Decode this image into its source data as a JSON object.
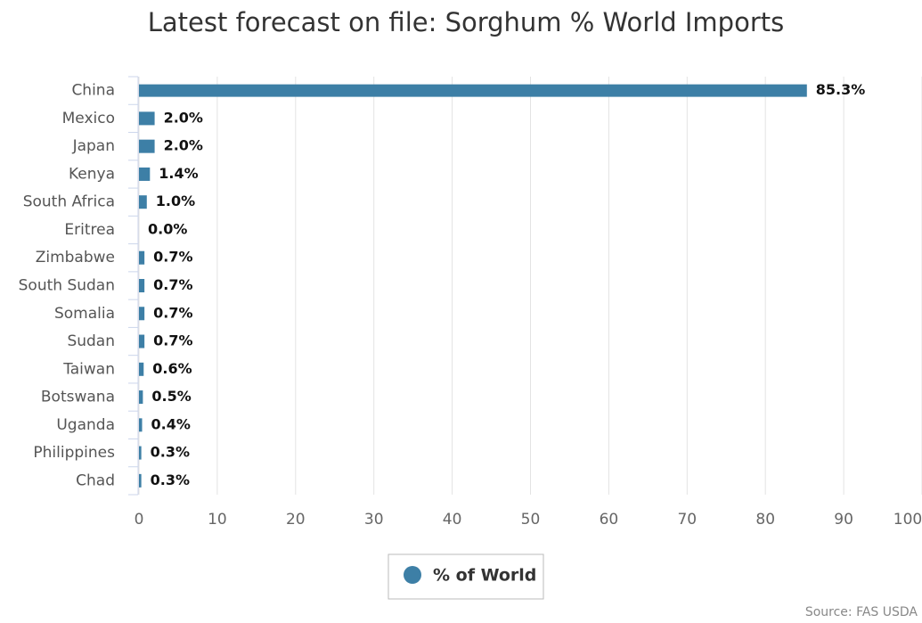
{
  "chart_data": {
    "type": "bar",
    "orientation": "horizontal",
    "title": "Latest forecast on file: Sorghum % World Imports",
    "source": "Source: FAS USDA",
    "categories": [
      "China",
      "Mexico",
      "Japan",
      "Kenya",
      "South Africa",
      "Eritrea",
      "Zimbabwe",
      "South Sudan",
      "Somalia",
      "Sudan",
      "Taiwan",
      "Botswana",
      "Uganda",
      "Philippines",
      "Chad"
    ],
    "series": [
      {
        "name": "% of World",
        "color": "#3d7fa6",
        "values": [
          85.3,
          2.0,
          2.0,
          1.4,
          1.0,
          0.0,
          0.7,
          0.7,
          0.7,
          0.7,
          0.6,
          0.5,
          0.4,
          0.3,
          0.3
        ],
        "value_labels": [
          "85.3%",
          "2.0%",
          "2.0%",
          "1.4%",
          "1.0%",
          "0.0%",
          "0.7%",
          "0.7%",
          "0.7%",
          "0.7%",
          "0.6%",
          "0.5%",
          "0.4%",
          "0.3%",
          "0.3%"
        ]
      }
    ],
    "xlim": [
      0,
      100
    ],
    "xticks": [
      0,
      10,
      20,
      30,
      40,
      50,
      60,
      70,
      80,
      90,
      100
    ],
    "grid": true
  }
}
